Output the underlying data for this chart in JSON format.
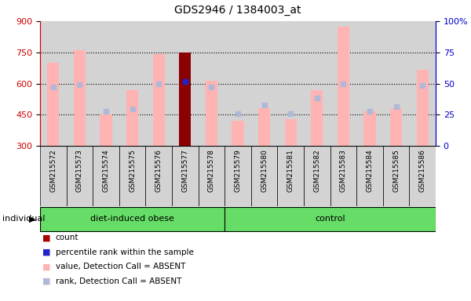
{
  "title": "GDS2946 / 1384003_at",
  "samples": [
    "GSM215572",
    "GSM215573",
    "GSM215574",
    "GSM215575",
    "GSM215576",
    "GSM215577",
    "GSM215578",
    "GSM215579",
    "GSM215580",
    "GSM215581",
    "GSM215582",
    "GSM215583",
    "GSM215584",
    "GSM215585",
    "GSM215586"
  ],
  "bar_values": [
    700,
    760,
    450,
    570,
    740,
    750,
    615,
    420,
    480,
    430,
    570,
    875,
    465,
    480,
    665
  ],
  "rank_values": [
    585,
    595,
    467,
    478,
    600,
    610,
    583,
    455,
    495,
    455,
    530,
    600,
    468,
    490,
    590
  ],
  "highlighted_bar": 5,
  "ylim_left": [
    300,
    900
  ],
  "ylim_right": [
    0,
    100
  ],
  "yticks_left": [
    300,
    450,
    600,
    750,
    900
  ],
  "yticks_right": [
    0,
    25,
    50,
    75,
    100
  ],
  "group1_label": "diet-induced obese",
  "group1_indices": [
    0,
    1,
    2,
    3,
    4,
    5,
    6
  ],
  "group2_label": "control",
  "group2_indices": [
    7,
    8,
    9,
    10,
    11,
    12,
    13,
    14
  ],
  "bar_color": "#FFB3B3",
  "rank_color": "#B0B8D8",
  "highlight_bar_color": "#8B0000",
  "highlight_rank_color": "#2222CC",
  "col_bg_color": "#D3D3D3",
  "left_axis_color": "#CC0000",
  "right_axis_color": "#0000CC",
  "group_bg": "#66DD66",
  "legend_items": [
    "count",
    "percentile rank within the sample",
    "value, Detection Call = ABSENT",
    "rank, Detection Call = ABSENT"
  ],
  "legend_colors": [
    "#AA0000",
    "#2222CC",
    "#FFB3B3",
    "#B0B8D8"
  ],
  "grid_dotted_at": [
    450,
    600,
    750
  ]
}
